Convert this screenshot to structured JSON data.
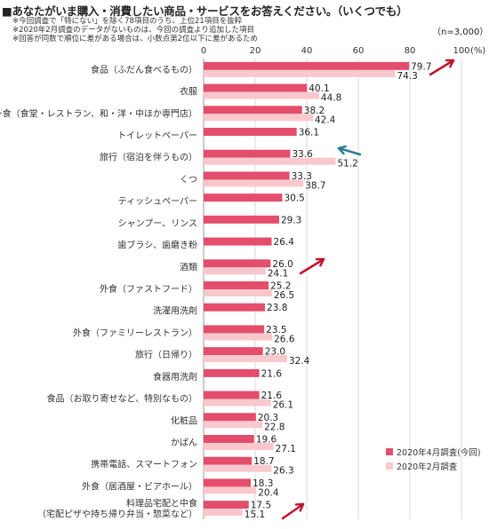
{
  "title": "■あなたがいま購入・消費したい商品・サービスをお答えください。（いくつでも）",
  "notes": [
    "※今回調査で「特にない」を除く78項目のうち、上位21項目を抜粋",
    "※2020年2月調査のデータがないものは、今回の調査より追加した項目",
    "※回答が同数で順位に差がある場合は、小数点第2位以下に差があるため"
  ],
  "sample_size": "（n=3,000）",
  "colors": {
    "april": "#e44d6c",
    "february": "#f9c8cd",
    "arrow_up": "#c0142d",
    "arrow_down": "#2c7b95"
  },
  "chart_data": {
    "type": "bar",
    "orientation": "horizontal",
    "xlim": [
      0,
      100
    ],
    "x_ticks": [
      "0",
      "20",
      "40",
      "60",
      "80",
      "100"
    ],
    "x_unit": "(%)",
    "grid": true,
    "legend_position": "bottom-right",
    "categories": [
      [
        "食品（ふだん食べるもの）"
      ],
      [
        "衣服"
      ],
      [
        "外食（食堂・レストラン、和・洋・中ほか専門店）"
      ],
      [
        "トイレットペーパー"
      ],
      [
        "旅行（宿泊を伴うもの）"
      ],
      [
        "くつ"
      ],
      [
        "ティッシュペーパー"
      ],
      [
        "シャンプー、リンス"
      ],
      [
        "歯ブラシ、歯磨き粉"
      ],
      [
        "酒類"
      ],
      [
        "外食（ファストフード）"
      ],
      [
        "洗濯用洗剤"
      ],
      [
        "外食（ファミリーレストラン）"
      ],
      [
        "旅行（日帰り）"
      ],
      [
        "食器用洗剤"
      ],
      [
        "食品（お取り寄せなど、特別なもの）"
      ],
      [
        "化粧品"
      ],
      [
        "かばん"
      ],
      [
        "携帯電話、スマートフォン"
      ],
      [
        "外食（居酒屋・ビアホール）"
      ],
      [
        "料理品宅配と中食",
        "（宅配ピザや持ち帰り弁当・惣菜など）"
      ]
    ],
    "series": [
      {
        "name": "2020年4月調査(今回)",
        "values": [
          79.7,
          40.1,
          38.2,
          36.1,
          33.6,
          33.3,
          30.5,
          29.3,
          26.4,
          26.0,
          25.2,
          23.8,
          23.5,
          23.0,
          21.6,
          21.6,
          20.3,
          19.6,
          18.7,
          18.3,
          17.5
        ]
      },
      {
        "name": "2020年2月調査",
        "values": [
          74.3,
          44.8,
          42.4,
          null,
          51.2,
          38.7,
          null,
          null,
          null,
          24.1,
          26.5,
          null,
          26.6,
          32.4,
          null,
          26.1,
          22.8,
          27.1,
          26.3,
          20.4,
          15.1
        ]
      }
    ],
    "annotations": [
      {
        "type": "arrow-up",
        "category_index": 0
      },
      {
        "type": "arrow-down",
        "category_index": 4
      },
      {
        "type": "arrow-up",
        "category_index": 9
      },
      {
        "type": "arrow-up",
        "category_index": 20
      }
    ]
  }
}
